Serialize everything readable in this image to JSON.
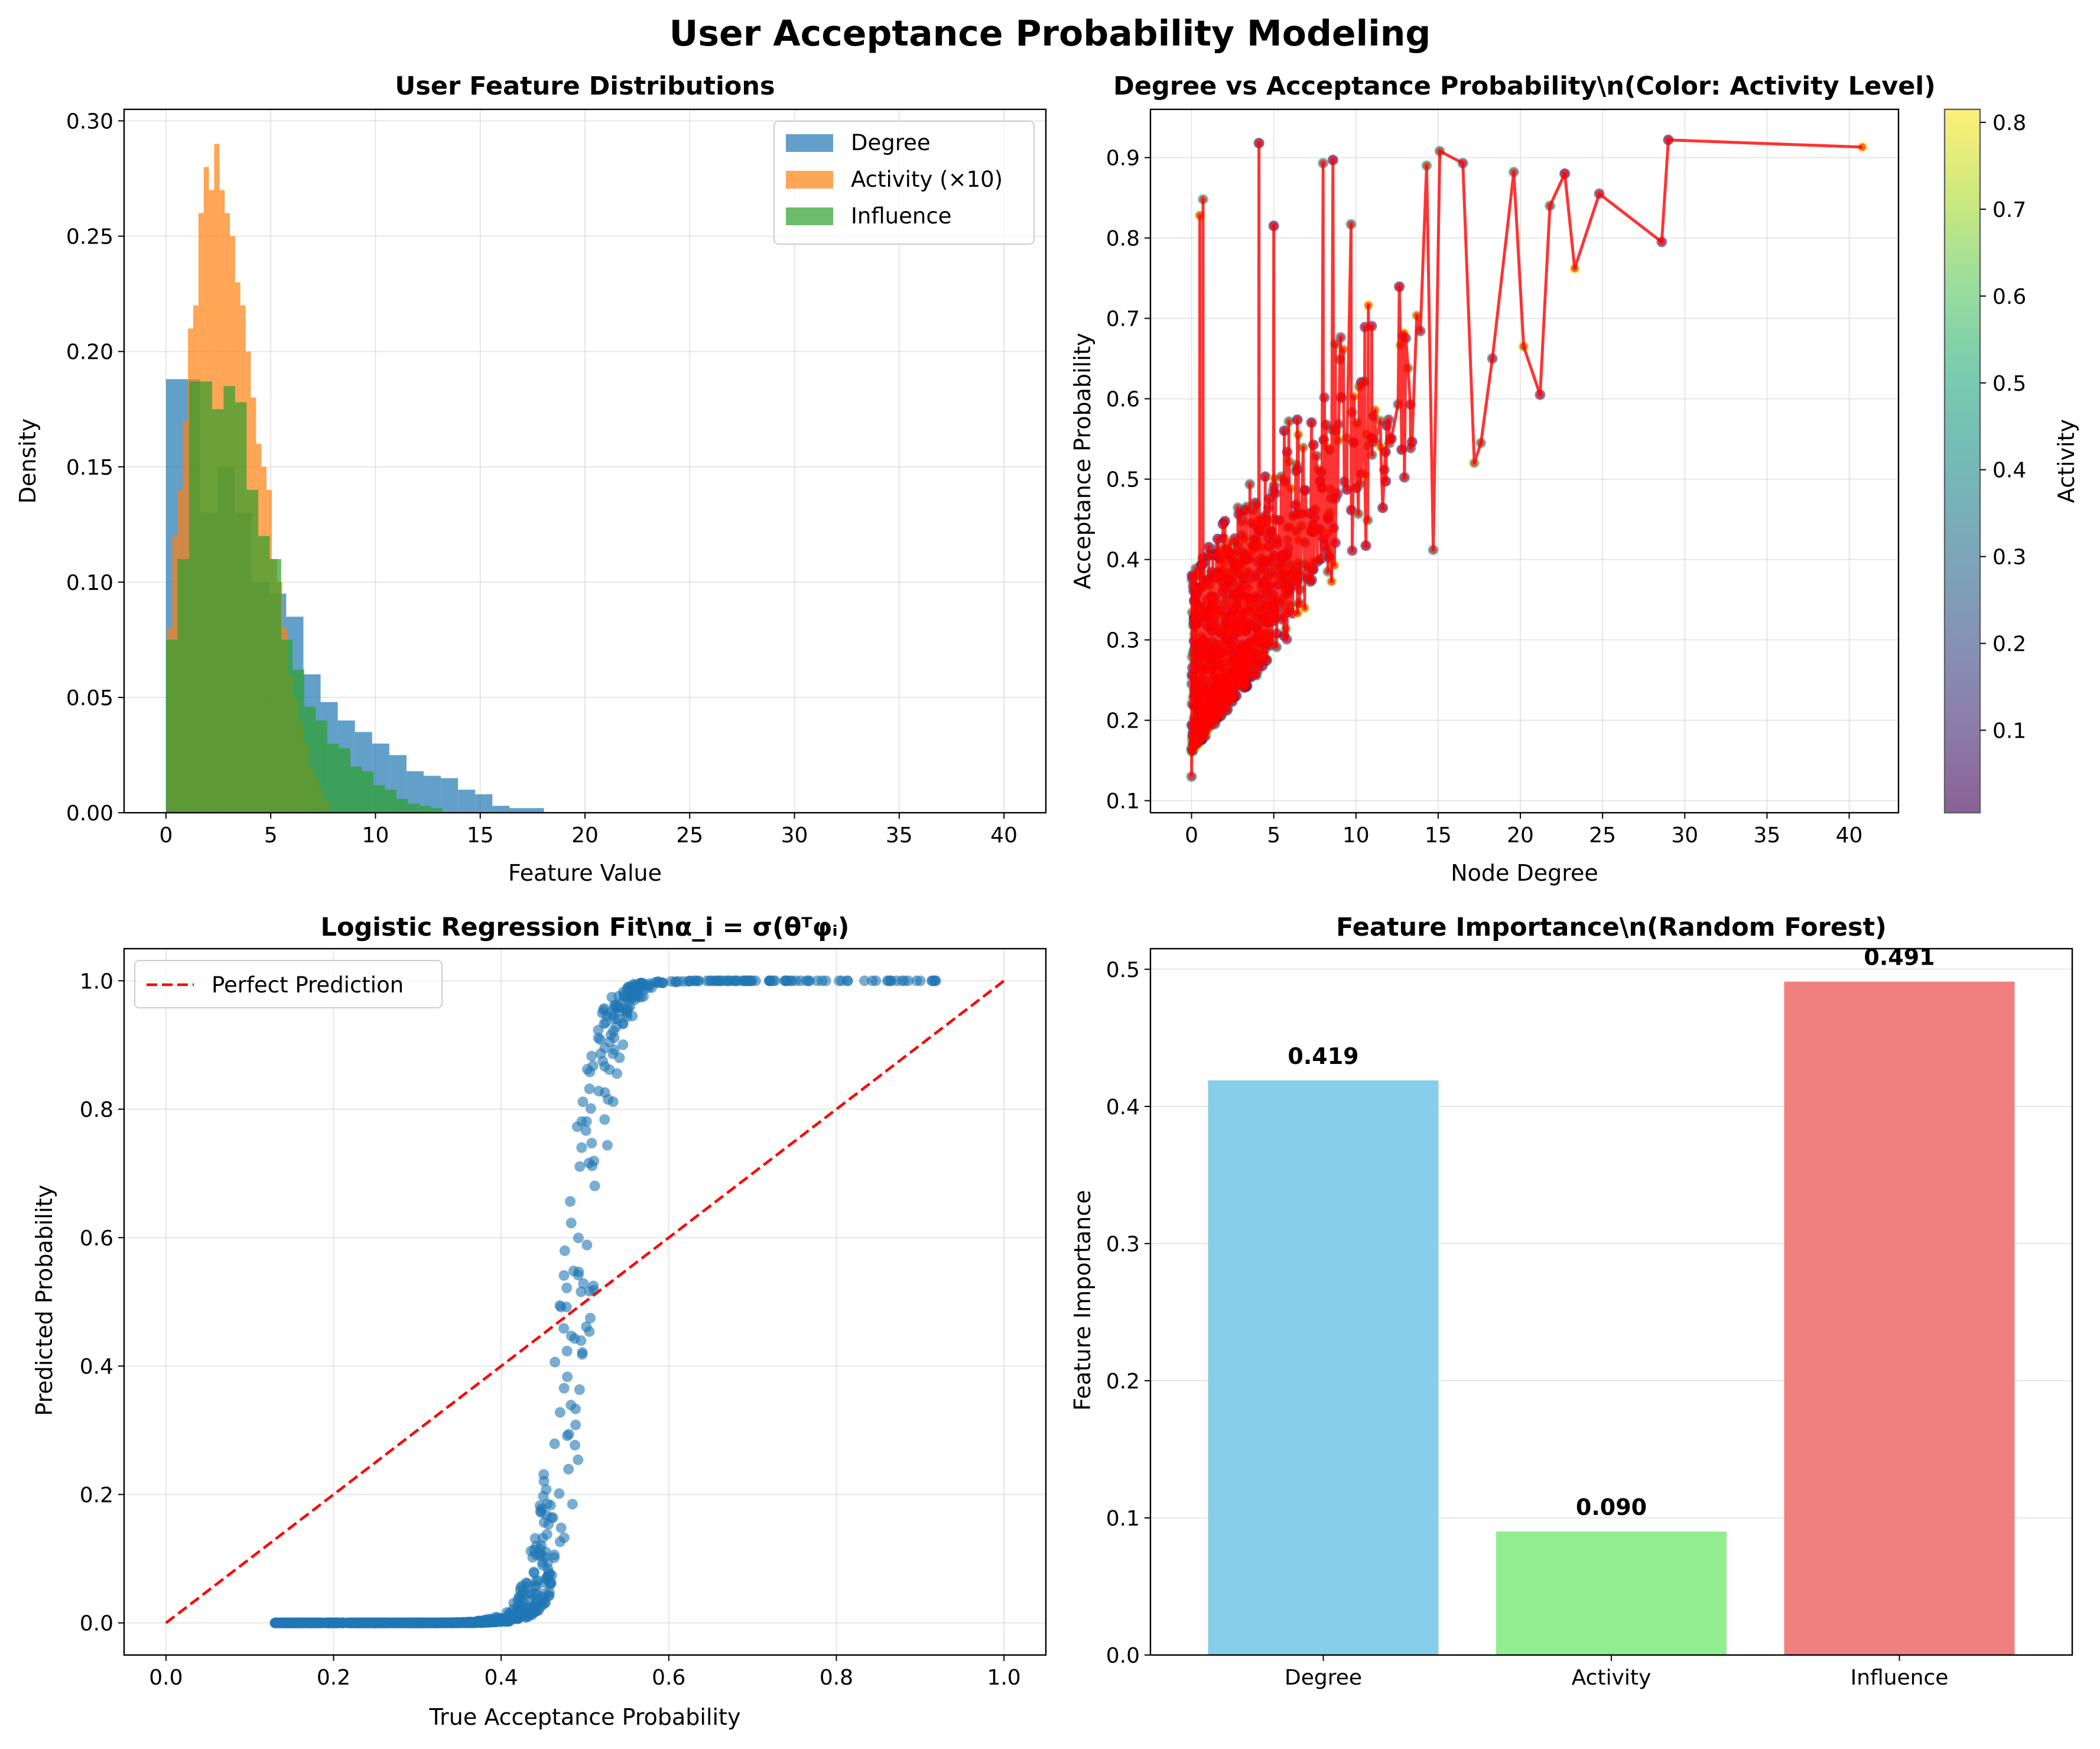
{
  "figure": {
    "suptitle": "User Acceptance Probability Modeling"
  },
  "chart_data": [
    {
      "type": "bar",
      "subtype": "histogram",
      "title": "User Feature Distributions",
      "xlabel": "Feature Value",
      "ylabel": "Density",
      "xlim": [
        -2,
        42
      ],
      "ylim": [
        0,
        0.305
      ],
      "xticks": [
        0,
        5,
        10,
        15,
        20,
        25,
        30,
        35,
        40
      ],
      "yticks": [
        0.0,
        0.05,
        0.1,
        0.15,
        0.2,
        0.25,
        0.3
      ],
      "grid": true,
      "legend_position": "top-right",
      "series": [
        {
          "name": "Degree",
          "color": "#1f77b4",
          "bin_width": 0.82,
          "bin_start": 0,
          "values": [
            0.188,
            0.188,
            0.13,
            0.15,
            0.13,
            0.1,
            0.095,
            0.085,
            0.06,
            0.048,
            0.04,
            0.035,
            0.03,
            0.025,
            0.018,
            0.016,
            0.015,
            0.01,
            0.008,
            0.003,
            0.002,
            0.002
          ]
        },
        {
          "name": "Activity (×10)",
          "color": "#ff7f0e",
          "bin_width": 0.25,
          "bin_start": 0.05,
          "values": [
            0.08,
            0.12,
            0.14,
            0.17,
            0.21,
            0.22,
            0.26,
            0.28,
            0.27,
            0.29,
            0.27,
            0.26,
            0.25,
            0.23,
            0.22,
            0.2,
            0.18,
            0.16,
            0.15,
            0.14,
            0.11,
            0.1,
            0.08,
            0.06,
            0.05,
            0.04,
            0.03,
            0.02,
            0.015,
            0.01,
            0.005
          ]
        },
        {
          "name": "Influence",
          "color": "#2ca02c",
          "bin_width": 0.55,
          "bin_start": 0,
          "values": [
            0.075,
            0.11,
            0.187,
            0.187,
            0.175,
            0.185,
            0.178,
            0.14,
            0.12,
            0.11,
            0.075,
            0.062,
            0.046,
            0.04,
            0.03,
            0.028,
            0.02,
            0.018,
            0.012,
            0.01,
            0.006,
            0.004,
            0.003,
            0.002
          ]
        }
      ]
    },
    {
      "type": "scatter",
      "title": "Degree vs Acceptance Probability\\n(Color: Activity Level)",
      "xlabel": "Node Degree",
      "ylabel": "Acceptance Probability",
      "xlim": [
        -2.5,
        43
      ],
      "ylim": [
        0.085,
        0.96
      ],
      "xticks": [
        0,
        5,
        10,
        15,
        20,
        25,
        30,
        35,
        40
      ],
      "yticks": [
        0.1,
        0.2,
        0.3,
        0.4,
        0.5,
        0.6,
        0.7,
        0.8,
        0.9
      ],
      "grid": true,
      "colorbar": {
        "label": "Activity",
        "range": [
          0.005,
          0.815
        ],
        "ticks": [
          0.1,
          0.2,
          0.3,
          0.4,
          0.5,
          0.6,
          0.7,
          0.8
        ],
        "colormap": "viridis"
      },
      "line_color": "#ff0000",
      "n_points": 1000,
      "outlier_points": [
        {
          "x": 28.6,
          "y": 0.795
        },
        {
          "x": 29.0,
          "y": 0.922
        },
        {
          "x": 40.8,
          "y": 0.913
        },
        {
          "x": 24.8,
          "y": 0.855
        },
        {
          "x": 23.3,
          "y": 0.762
        },
        {
          "x": 22.7,
          "y": 0.88
        },
        {
          "x": 21.8,
          "y": 0.84
        },
        {
          "x": 21.2,
          "y": 0.605
        },
        {
          "x": 20.2,
          "y": 0.665
        },
        {
          "x": 19.6,
          "y": 0.882
        },
        {
          "x": 18.3,
          "y": 0.65
        },
        {
          "x": 17.6,
          "y": 0.545
        },
        {
          "x": 17.2,
          "y": 0.52
        },
        {
          "x": 16.5,
          "y": 0.893
        },
        {
          "x": 15.1,
          "y": 0.908
        },
        {
          "x": 14.7,
          "y": 0.412
        },
        {
          "x": 14.3,
          "y": 0.89
        },
        {
          "x": 4.1,
          "y": 0.918
        },
        {
          "x": 8.6,
          "y": 0.897
        },
        {
          "x": 8.0,
          "y": 0.893
        },
        {
          "x": 0.7,
          "y": 0.848
        },
        {
          "x": 0.5,
          "y": 0.828
        },
        {
          "x": 5.0,
          "y": 0.815
        },
        {
          "x": 9.7,
          "y": 0.817
        },
        {
          "x": 0.0,
          "y": 0.13
        }
      ]
    },
    {
      "type": "scatter",
      "title": "Logistic Regression Fit\\nα_i = σ(θᵀφᵢ)",
      "xlabel": "True Acceptance Probability",
      "ylabel": "Predicted Probability",
      "xlim": [
        -0.05,
        1.05
      ],
      "ylim": [
        -0.05,
        1.05
      ],
      "xticks": [
        0.0,
        0.2,
        0.4,
        0.6,
        0.8,
        1.0
      ],
      "yticks": [
        0.0,
        0.2,
        0.4,
        0.6,
        0.8,
        1.0
      ],
      "grid": true,
      "legend_position": "top-left",
      "series": [
        {
          "name": "Perfect Prediction",
          "color": "#ff0000",
          "style": "dashed",
          "x": [
            0,
            1
          ],
          "y": [
            0,
            1
          ]
        }
      ],
      "points_color": "#1f77b4",
      "sigmoid_center": 0.49,
      "sigmoid_steepness": 60,
      "x_range": [
        0.13,
        0.92
      ]
    },
    {
      "type": "bar",
      "title": "Feature Importance\\n(Random Forest)",
      "xlabel": "",
      "ylabel": "Feature Importance",
      "categories": [
        "Degree",
        "Activity",
        "Influence"
      ],
      "values": [
        0.419,
        0.09,
        0.491
      ],
      "labels": [
        "0.419",
        "0.090",
        "0.491"
      ],
      "colors": [
        "#87ceeb",
        "#90ee90",
        "#f08080"
      ],
      "ylim": [
        0,
        0.515
      ],
      "yticks": [
        0.0,
        0.1,
        0.2,
        0.3,
        0.4,
        0.5
      ],
      "grid": true
    }
  ]
}
